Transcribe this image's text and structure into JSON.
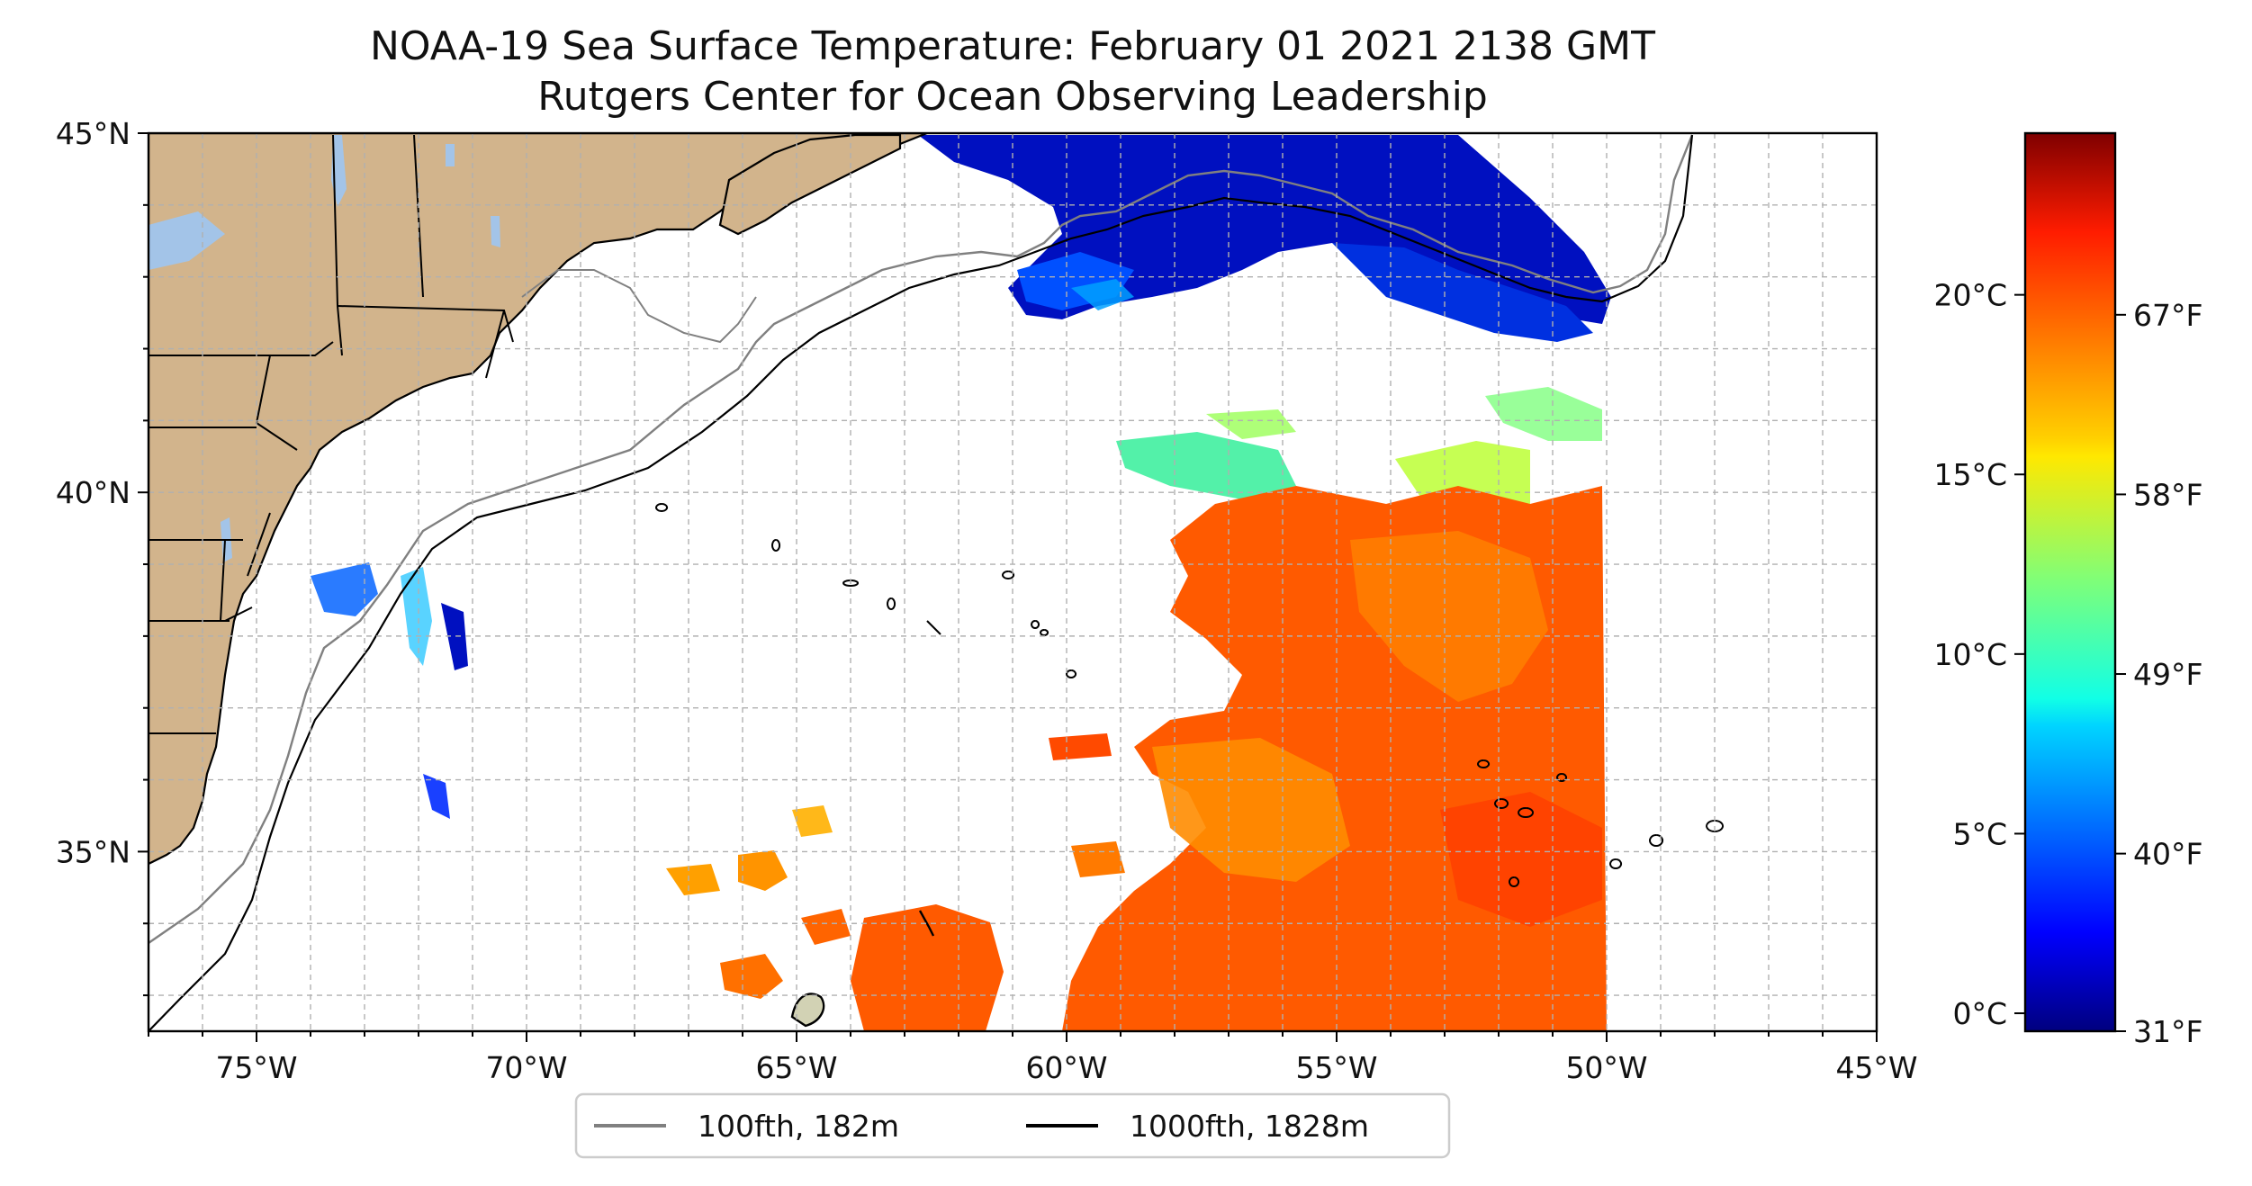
{
  "title": {
    "line1": "NOAA-19 Sea Surface Temperature: February 01 2021 2138 GMT",
    "line2": "Rutgers Center for Ocean Observing Leadership"
  },
  "map": {
    "lon_range": [
      -77,
      -45
    ],
    "lat_range": [
      32.5,
      45
    ],
    "x_ticks": [
      {
        "lon": -75,
        "label": "75°W"
      },
      {
        "lon": -70,
        "label": "70°W"
      },
      {
        "lon": -65,
        "label": "65°W"
      },
      {
        "lon": -60,
        "label": "60°W"
      },
      {
        "lon": -55,
        "label": "55°W"
      },
      {
        "lon": -50,
        "label": "50°W"
      },
      {
        "lon": -45,
        "label": "45°W"
      }
    ],
    "y_ticks": [
      {
        "lat": 45,
        "label": "45°N"
      },
      {
        "lat": 40,
        "label": "40°N"
      },
      {
        "lat": 35,
        "label": "35°N"
      }
    ],
    "grid": true,
    "grid_step_deg": 1,
    "colors": {
      "land": "#d2b48c",
      "lake": "#a3c4e8",
      "border": "#000000",
      "bathy_100": "#808080",
      "bathy_1000": "#000000",
      "grid": "#b0b0b0"
    }
  },
  "legend": {
    "placement": "bottom-center",
    "items": [
      {
        "label": "100fth, 182m",
        "color": "#808080"
      },
      {
        "label": "1000fth, 1828m",
        "color": "#000000"
      }
    ]
  },
  "colorbar": {
    "colormap": "jet",
    "range_c": [
      -0.5,
      24.5
    ],
    "celsius_ticks": [
      {
        "value": 0,
        "label": "0°C"
      },
      {
        "value": 5,
        "label": "5°C"
      },
      {
        "value": 10,
        "label": "10°C"
      },
      {
        "value": 15,
        "label": "15°C"
      },
      {
        "value": 20,
        "label": "20°C"
      }
    ],
    "fahrenheit_ticks": [
      {
        "value": 31,
        "label": "31°F"
      },
      {
        "value": 40,
        "label": "40°F"
      },
      {
        "value": 49,
        "label": "49°F"
      },
      {
        "value": 58,
        "label": "58°F"
      },
      {
        "value": 67,
        "label": "67°F"
      }
    ]
  }
}
